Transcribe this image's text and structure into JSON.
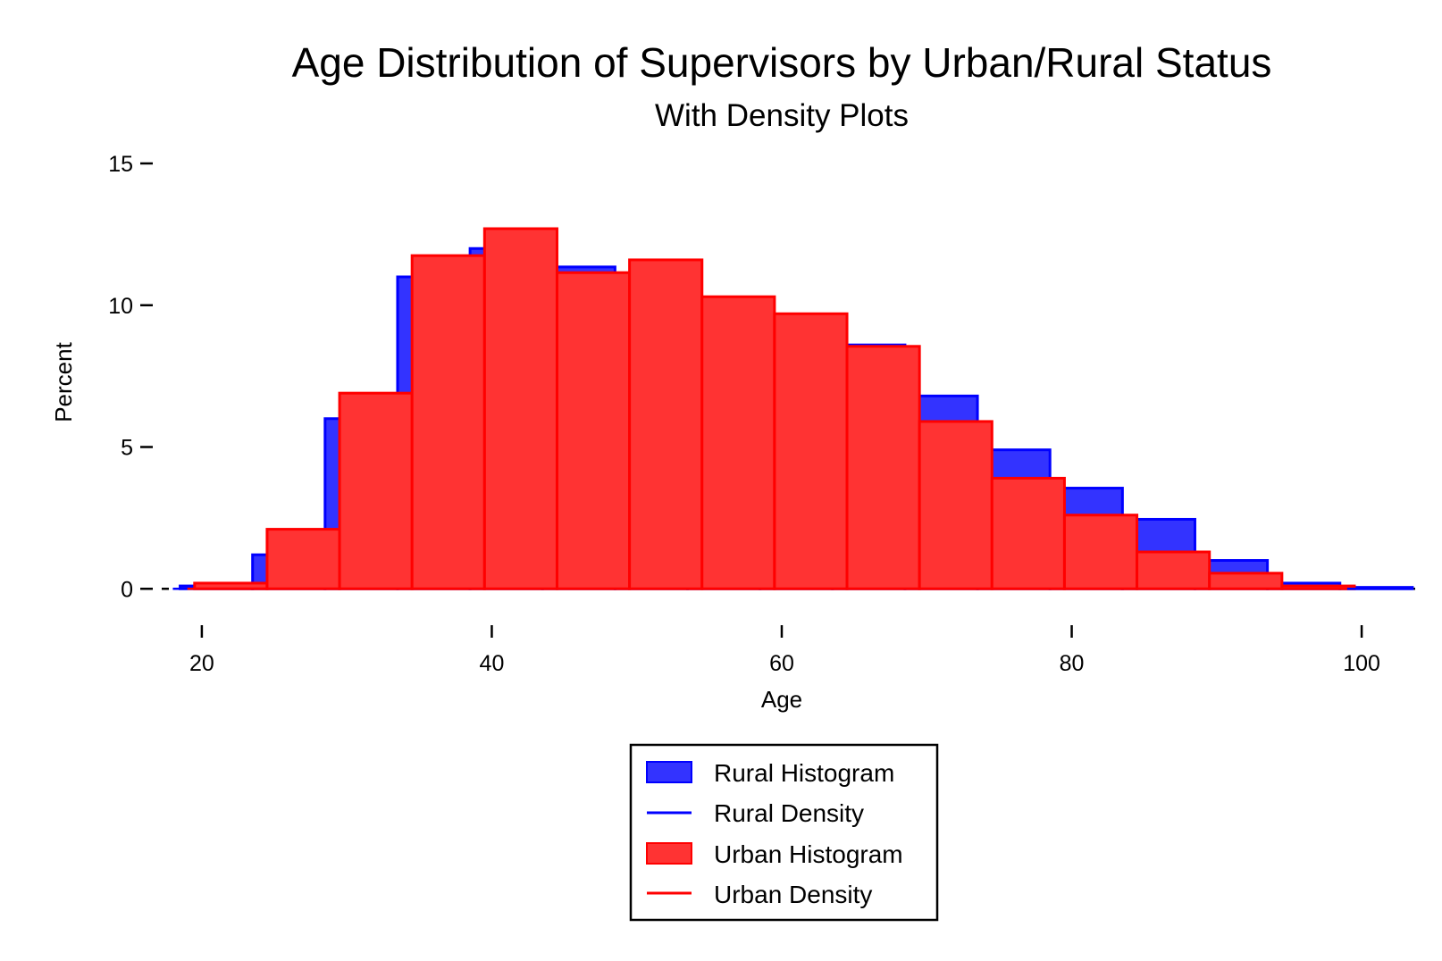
{
  "chart_data": {
    "type": "bar",
    "title": "Age Distribution of Supervisors by Urban/Rural Status",
    "subtitle": "With Density Plots",
    "xlabel": "Age",
    "ylabel": "Percent",
    "xlim": [
      16,
      104
    ],
    "ylim": [
      -1,
      15
    ],
    "xticks": [
      20,
      40,
      60,
      80,
      100
    ],
    "yticks": [
      0,
      5,
      10,
      15
    ],
    "grid": false,
    "legend_position": "bottom",
    "colors": {
      "rural": "#0000ff",
      "urban": "#ff0000",
      "rural_fill": "#3333ff",
      "urban_fill": "#ff3333"
    },
    "series": [
      {
        "name": "Rural Histogram",
        "bins": [
          {
            "x0": 18.5,
            "x1": 23.5,
            "value": 0.1
          },
          {
            "x0": 23.5,
            "x1": 28.5,
            "value": 1.2
          },
          {
            "x0": 28.5,
            "x1": 33.5,
            "value": 6.0
          },
          {
            "x0": 33.5,
            "x1": 38.5,
            "value": 11.0
          },
          {
            "x0": 38.5,
            "x1": 43.5,
            "value": 12.0
          },
          {
            "x0": 43.5,
            "x1": 48.5,
            "value": 11.35
          },
          {
            "x0": 48.5,
            "x1": 53.5,
            "value": 11.1
          },
          {
            "x0": 53.5,
            "x1": 58.5,
            "value": 10.0
          },
          {
            "x0": 58.5,
            "x1": 63.5,
            "value": 9.3
          },
          {
            "x0": 63.5,
            "x1": 68.5,
            "value": 8.6
          },
          {
            "x0": 68.5,
            "x1": 73.5,
            "value": 6.8
          },
          {
            "x0": 73.5,
            "x1": 78.5,
            "value": 4.9
          },
          {
            "x0": 78.5,
            "x1": 83.5,
            "value": 3.55
          },
          {
            "x0": 83.5,
            "x1": 88.5,
            "value": 2.45
          },
          {
            "x0": 88.5,
            "x1": 93.5,
            "value": 1.0
          },
          {
            "x0": 93.5,
            "x1": 98.5,
            "value": 0.2
          },
          {
            "x0": 98.5,
            "x1": 103.5,
            "value": 0.05
          }
        ]
      },
      {
        "name": "Rural Density",
        "x": [
          18,
          25,
          30,
          35,
          40,
          45,
          50,
          55,
          60,
          65,
          70,
          75,
          80,
          85,
          90,
          95,
          100,
          103
        ],
        "y": [
          0,
          0,
          0,
          0,
          0,
          0,
          0,
          0,
          0,
          0,
          0,
          0,
          0,
          0,
          0,
          0,
          0,
          0
        ]
      },
      {
        "name": "Urban Histogram",
        "bins": [
          {
            "x0": 19.5,
            "x1": 24.5,
            "value": 0.2
          },
          {
            "x0": 24.5,
            "x1": 29.5,
            "value": 2.1
          },
          {
            "x0": 29.5,
            "x1": 34.5,
            "value": 6.9
          },
          {
            "x0": 34.5,
            "x1": 39.5,
            "value": 11.75
          },
          {
            "x0": 39.5,
            "x1": 44.5,
            "value": 12.7
          },
          {
            "x0": 44.5,
            "x1": 49.5,
            "value": 11.15
          },
          {
            "x0": 49.5,
            "x1": 54.5,
            "value": 11.6
          },
          {
            "x0": 54.5,
            "x1": 59.5,
            "value": 10.3
          },
          {
            "x0": 59.5,
            "x1": 64.5,
            "value": 9.7
          },
          {
            "x0": 64.5,
            "x1": 69.5,
            "value": 8.55
          },
          {
            "x0": 69.5,
            "x1": 74.5,
            "value": 5.9
          },
          {
            "x0": 74.5,
            "x1": 79.5,
            "value": 3.9
          },
          {
            "x0": 79.5,
            "x1": 84.5,
            "value": 2.6
          },
          {
            "x0": 84.5,
            "x1": 89.5,
            "value": 1.3
          },
          {
            "x0": 89.5,
            "x1": 94.5,
            "value": 0.55
          },
          {
            "x0": 94.5,
            "x1": 99.5,
            "value": 0.1
          }
        ]
      },
      {
        "name": "Urban Density",
        "x": [
          19,
          25,
          30,
          35,
          40,
          45,
          50,
          55,
          60,
          65,
          70,
          75,
          80,
          85,
          90,
          95,
          99
        ],
        "y": [
          0,
          0,
          0,
          0,
          0,
          0,
          0,
          0,
          0,
          0,
          0,
          0,
          0,
          0,
          0,
          0,
          0
        ]
      }
    ]
  }
}
